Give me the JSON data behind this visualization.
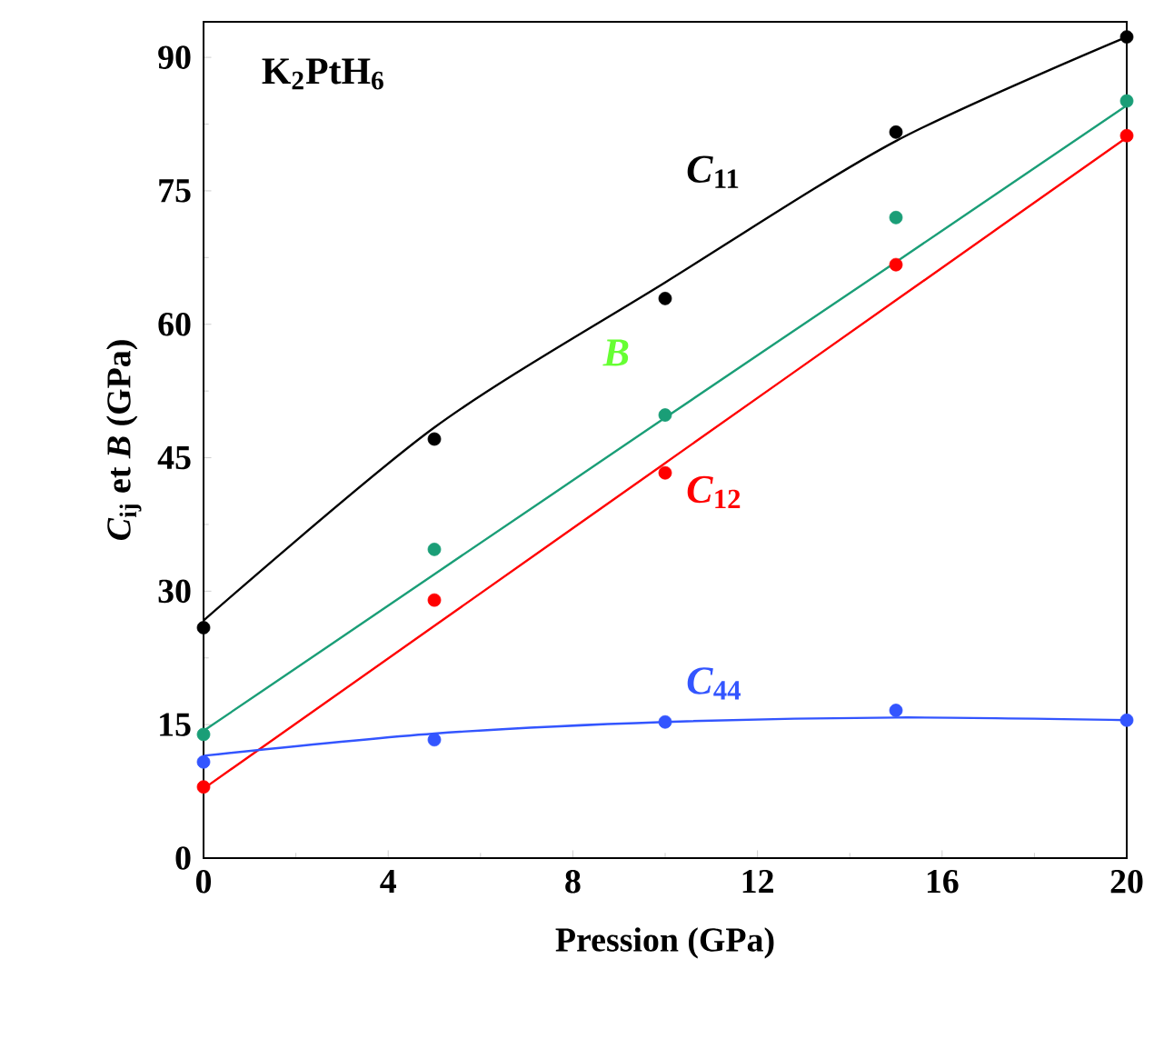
{
  "chart_data": {
    "type": "scatter",
    "title": "K$_{2}$PtH$_{6}$",
    "xlabel": "Pression (GPa)",
    "ylabel": "*C*$_{ij}$ et *B* (GPa)",
    "x": [
      0,
      5,
      10,
      15,
      20
    ],
    "xlim": [
      0,
      20
    ],
    "xticks": [
      0,
      4,
      8,
      12,
      16,
      20
    ],
    "ylim": [
      0,
      94
    ],
    "yticks": [
      0,
      15,
      30,
      45,
      60,
      75,
      90
    ],
    "series": [
      {
        "name": "*C*$_{11}$",
        "color": "#000000",
        "marker": "circle",
        "values": [
          25.9,
          47.1,
          62.9,
          81.6,
          92.3
        ]
      },
      {
        "name": "*B*",
        "color": "#1a9e77",
        "marker": "circle",
        "values": [
          13.9,
          34.7,
          49.8,
          72.0,
          85.1
        ]
      },
      {
        "name": "*C*$_{12}$",
        "color": "#ff0000",
        "marker": "circle",
        "values": [
          8.0,
          29.0,
          43.3,
          66.7,
          81.2
        ]
      },
      {
        "name": "*C*$_{44}$",
        "color": "#3355ff",
        "marker": "circle",
        "values": [
          10.8,
          13.3,
          15.3,
          16.6,
          15.5
        ]
      },
      {
        "type": "line",
        "color": "#000000",
        "marker": "none",
        "values": [
          26.7,
          48.4,
          64.7,
          80.6,
          92.3
        ]
      },
      {
        "type": "line",
        "color": "#1a9e77",
        "marker": "none",
        "values": [
          14.3,
          31.9,
          49.5,
          67.0,
          84.6
        ]
      },
      {
        "type": "line",
        "color": "#ff0000",
        "marker": "none",
        "values": [
          7.8,
          26.1,
          44.4,
          62.7,
          81.0
        ]
      },
      {
        "type": "line",
        "color": "#3355ff",
        "marker": "none",
        "values": [
          11.5,
          14.0,
          15.3,
          15.8,
          15.5
        ]
      }
    ]
  }
}
